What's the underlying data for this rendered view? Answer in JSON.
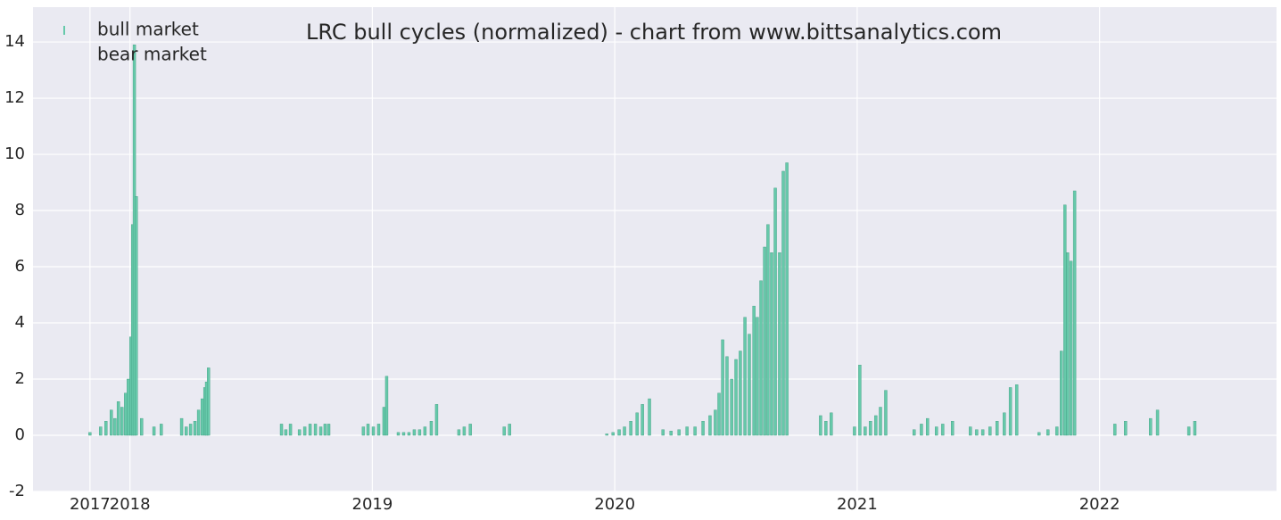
{
  "chart_data": {
    "type": "bar",
    "title": "LRC bull cycles (normalized)  - chart from www.bittsanalytics.com",
    "xlim": [
      2017.6,
      2022.73
    ],
    "xticks": [
      {
        "value": 2017.835,
        "label": "2017"
      },
      2018,
      2019,
      2020,
      2021,
      2022
    ],
    "ylim": [
      -2,
      15.24
    ],
    "yticks": [
      -2,
      0,
      2,
      4,
      6,
      8,
      10,
      12,
      14
    ],
    "grid": true,
    "legend": "upper left",
    "series": [
      {
        "name": "bull market",
        "color": "#66c9aa",
        "x": [
          2017.835,
          2017.879,
          2017.901,
          2017.923,
          2017.938,
          2017.952,
          2017.967,
          2017.982,
          2017.993,
          2018.004,
          2018.011,
          2018.018,
          2018.026,
          2018.048,
          2018.099,
          2018.129,
          2018.213,
          2018.232,
          2018.25,
          2018.268,
          2018.283,
          2018.298,
          2018.309,
          2018.316,
          2018.324,
          2018.625,
          2018.643,
          2018.662,
          2018.699,
          2018.721,
          2018.743,
          2018.765,
          2018.787,
          2018.805,
          2018.82,
          2018.963,
          2018.982,
          2019.004,
          2019.026,
          2019.048,
          2019.059,
          2019.107,
          2019.129,
          2019.151,
          2019.173,
          2019.195,
          2019.217,
          2019.243,
          2019.265,
          2019.357,
          2019.379,
          2019.404,
          2019.544,
          2019.566,
          2019.967,
          2019.993,
          2020.018,
          2020.04,
          2020.066,
          2020.092,
          2020.114,
          2020.143,
          2020.199,
          2020.232,
          2020.265,
          2020.298,
          2020.331,
          2020.364,
          2020.393,
          2020.415,
          2020.43,
          2020.445,
          2020.463,
          2020.482,
          2020.5,
          2020.518,
          2020.537,
          2020.555,
          2020.574,
          2020.588,
          2020.603,
          2020.618,
          2020.632,
          2020.647,
          2020.662,
          2020.68,
          2020.695,
          2020.71,
          2020.849,
          2020.871,
          2020.893,
          2020.989,
          2021.011,
          2021.033,
          2021.055,
          2021.077,
          2021.096,
          2021.118,
          2021.235,
          2021.265,
          2021.29,
          2021.327,
          2021.353,
          2021.393,
          2021.467,
          2021.493,
          2021.518,
          2021.548,
          2021.577,
          2021.607,
          2021.632,
          2021.658,
          2021.75,
          2021.787,
          2021.824,
          2021.842,
          2021.857,
          2021.868,
          2021.882,
          2021.897,
          2022.063,
          2022.107,
          2022.21,
          2022.239,
          2022.368,
          2022.393
        ],
        "values": [
          0.1,
          0.3,
          0.5,
          0.9,
          0.6,
          1.2,
          1.0,
          1.5,
          2.0,
          3.5,
          7.5,
          13.9,
          8.5,
          0.6,
          0.3,
          0.4,
          0.6,
          0.3,
          0.4,
          0.5,
          0.9,
          1.3,
          1.7,
          1.9,
          2.4,
          0.4,
          0.2,
          0.4,
          0.2,
          0.3,
          0.4,
          0.4,
          0.3,
          0.4,
          0.4,
          0.3,
          0.4,
          0.3,
          0.4,
          1.0,
          2.1,
          0.1,
          0.1,
          0.1,
          0.2,
          0.2,
          0.3,
          0.5,
          1.1,
          0.2,
          0.3,
          0.4,
          0.3,
          0.4,
          0.05,
          0.1,
          0.2,
          0.3,
          0.5,
          0.8,
          1.1,
          1.3,
          0.2,
          0.15,
          0.2,
          0.3,
          0.3,
          0.5,
          0.7,
          0.9,
          1.5,
          3.4,
          2.8,
          2.0,
          2.7,
          3.0,
          4.2,
          3.6,
          4.6,
          4.2,
          5.5,
          6.7,
          7.5,
          6.5,
          8.8,
          6.5,
          9.4,
          9.7,
          0.7,
          0.5,
          0.8,
          0.3,
          2.5,
          0.3,
          0.5,
          0.7,
          1.0,
          1.6,
          0.2,
          0.4,
          0.6,
          0.3,
          0.4,
          0.5,
          0.3,
          0.2,
          0.2,
          0.3,
          0.5,
          0.8,
          1.7,
          1.8,
          0.1,
          0.2,
          0.3,
          3.0,
          8.2,
          6.5,
          6.2,
          8.7,
          0.4,
          0.5,
          0.6,
          0.9,
          0.3,
          0.5
        ]
      },
      {
        "name": "bear market",
        "color": "#eaeaf2",
        "x": [],
        "values": []
      }
    ]
  }
}
